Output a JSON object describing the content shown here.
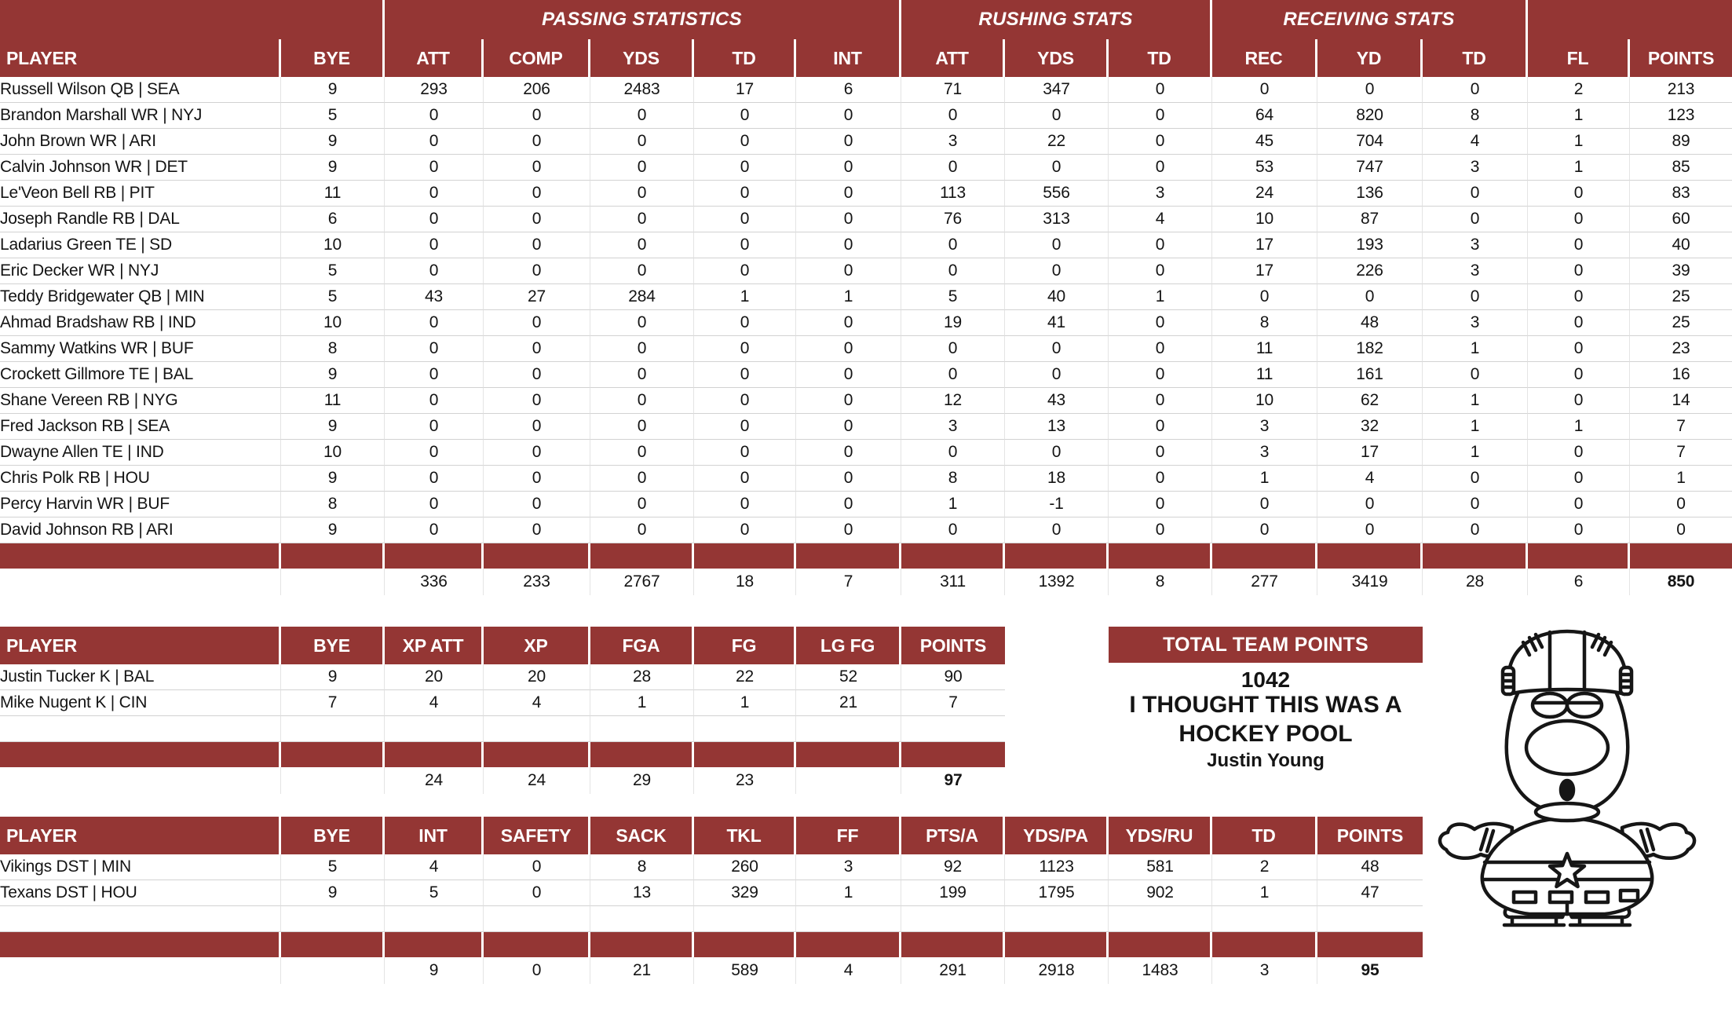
{
  "theme": {
    "header_bg": "#943634",
    "header_text": "#ffffff",
    "grid_line": "#e4e4e4",
    "row_line": "#d2d2d2"
  },
  "skater_table": {
    "groups": [
      {
        "label": "",
        "span": 2
      },
      {
        "label": "PASSING STATISTICS",
        "span": 5
      },
      {
        "label": "RUSHING STATS",
        "span": 3
      },
      {
        "label": "RECEIVING STATS",
        "span": 3
      },
      {
        "label": "",
        "span": 2
      }
    ],
    "columns": [
      "PLAYER",
      "BYE",
      "ATT",
      "COMP",
      "YDS",
      "TD",
      "INT",
      "ATT",
      "YDS",
      "TD",
      "REC",
      "YD",
      "TD",
      "FL",
      "POINTS"
    ],
    "rows": [
      {
        "player": "Russell Wilson QB | SEA",
        "cells": [
          "9",
          "293",
          "206",
          "2483",
          "17",
          "6",
          "71",
          "347",
          "0",
          "0",
          "0",
          "0",
          "2",
          "213"
        ]
      },
      {
        "player": "Brandon Marshall WR | NYJ",
        "cells": [
          "5",
          "0",
          "0",
          "0",
          "0",
          "0",
          "0",
          "0",
          "0",
          "64",
          "820",
          "8",
          "1",
          "123"
        ]
      },
      {
        "player": "John Brown WR | ARI",
        "cells": [
          "9",
          "0",
          "0",
          "0",
          "0",
          "0",
          "3",
          "22",
          "0",
          "45",
          "704",
          "4",
          "1",
          "89"
        ]
      },
      {
        "player": "Calvin Johnson WR | DET",
        "cells": [
          "9",
          "0",
          "0",
          "0",
          "0",
          "0",
          "0",
          "0",
          "0",
          "53",
          "747",
          "3",
          "1",
          "85"
        ]
      },
      {
        "player": "Le'Veon Bell RB | PIT",
        "cells": [
          "11",
          "0",
          "0",
          "0",
          "0",
          "0",
          "113",
          "556",
          "3",
          "24",
          "136",
          "0",
          "0",
          "83"
        ]
      },
      {
        "player": "Joseph Randle RB | DAL",
        "cells": [
          "6",
          "0",
          "0",
          "0",
          "0",
          "0",
          "76",
          "313",
          "4",
          "10",
          "87",
          "0",
          "0",
          "60"
        ]
      },
      {
        "player": "Ladarius Green TE | SD",
        "cells": [
          "10",
          "0",
          "0",
          "0",
          "0",
          "0",
          "0",
          "0",
          "0",
          "17",
          "193",
          "3",
          "0",
          "40"
        ]
      },
      {
        "player": "Eric Decker WR | NYJ",
        "cells": [
          "5",
          "0",
          "0",
          "0",
          "0",
          "0",
          "0",
          "0",
          "0",
          "17",
          "226",
          "3",
          "0",
          "39"
        ]
      },
      {
        "player": "Teddy Bridgewater QB | MIN",
        "cells": [
          "5",
          "43",
          "27",
          "284",
          "1",
          "1",
          "5",
          "40",
          "1",
          "0",
          "0",
          "0",
          "0",
          "25"
        ]
      },
      {
        "player": "Ahmad Bradshaw RB | IND",
        "cells": [
          "10",
          "0",
          "0",
          "0",
          "0",
          "0",
          "19",
          "41",
          "0",
          "8",
          "48",
          "3",
          "0",
          "25"
        ]
      },
      {
        "player": "Sammy Watkins WR | BUF",
        "cells": [
          "8",
          "0",
          "0",
          "0",
          "0",
          "0",
          "0",
          "0",
          "0",
          "11",
          "182",
          "1",
          "0",
          "23"
        ]
      },
      {
        "player": "Crockett Gillmore TE | BAL",
        "cells": [
          "9",
          "0",
          "0",
          "0",
          "0",
          "0",
          "0",
          "0",
          "0",
          "11",
          "161",
          "0",
          "0",
          "16"
        ]
      },
      {
        "player": "Shane Vereen RB | NYG",
        "cells": [
          "11",
          "0",
          "0",
          "0",
          "0",
          "0",
          "12",
          "43",
          "0",
          "10",
          "62",
          "1",
          "0",
          "14"
        ]
      },
      {
        "player": "Fred Jackson RB | SEA",
        "cells": [
          "9",
          "0",
          "0",
          "0",
          "0",
          "0",
          "3",
          "13",
          "0",
          "3",
          "32",
          "1",
          "1",
          "7"
        ]
      },
      {
        "player": "Dwayne Allen TE | IND",
        "cells": [
          "10",
          "0",
          "0",
          "0",
          "0",
          "0",
          "0",
          "0",
          "0",
          "3",
          "17",
          "1",
          "0",
          "7"
        ]
      },
      {
        "player": "Chris Polk RB | HOU",
        "cells": [
          "9",
          "0",
          "0",
          "0",
          "0",
          "0",
          "8",
          "18",
          "0",
          "1",
          "4",
          "0",
          "0",
          "1"
        ]
      },
      {
        "player": "Percy Harvin WR | BUF",
        "cells": [
          "8",
          "0",
          "0",
          "0",
          "0",
          "0",
          "1",
          "-1",
          "0",
          "0",
          "0",
          "0",
          "0",
          "0"
        ]
      },
      {
        "player": "David Johnson RB | ARI",
        "cells": [
          "9",
          "0",
          "0",
          "0",
          "0",
          "0",
          "0",
          "0",
          "0",
          "0",
          "0",
          "0",
          "0",
          "0"
        ]
      }
    ],
    "totals": [
      "",
      "",
      "336",
      "233",
      "2767",
      "18",
      "7",
      "311",
      "1392",
      "8",
      "277",
      "3419",
      "28",
      "6",
      "850"
    ]
  },
  "kicker_table": {
    "columns": [
      "PLAYER",
      "BYE",
      "XP ATT",
      "XP",
      "FGA",
      "FG",
      "LG FG",
      "POINTS"
    ],
    "rows": [
      {
        "player": "Justin Tucker K | BAL",
        "cells": [
          "9",
          "20",
          "20",
          "28",
          "22",
          "52",
          "90"
        ]
      },
      {
        "player": "Mike Nugent K | CIN",
        "cells": [
          "7",
          "4",
          "4",
          "1",
          "1",
          "21",
          "7"
        ]
      }
    ],
    "totals": [
      "",
      "",
      "24",
      "24",
      "29",
      "23",
      "",
      "97"
    ]
  },
  "dst_table": {
    "columns": [
      "PLAYER",
      "BYE",
      "INT",
      "SAFETY",
      "SACK",
      "TKL",
      "FF",
      "PTS/A",
      "YDS/PA",
      "YDS/RU",
      "TD",
      "POINTS"
    ],
    "rows": [
      {
        "player": "Vikings DST | MIN",
        "cells": [
          "5",
          "4",
          "0",
          "8",
          "260",
          "3",
          "92",
          "1123",
          "581",
          "2",
          "48"
        ]
      },
      {
        "player": "Texans DST | HOU",
        "cells": [
          "9",
          "5",
          "0",
          "13",
          "329",
          "1",
          "199",
          "1795",
          "902",
          "1",
          "47"
        ]
      }
    ],
    "totals": [
      "",
      "",
      "9",
      "0",
      "21",
      "589",
      "4",
      "291",
      "2918",
      "1483",
      "3",
      "95"
    ]
  },
  "team_points": {
    "title": "TOTAL TEAM POINTS",
    "value": "1042",
    "caption_line1": "I THOUGHT THIS WAS A",
    "caption_line2": "HOCKEY POOL",
    "owner": "Justin Young"
  }
}
